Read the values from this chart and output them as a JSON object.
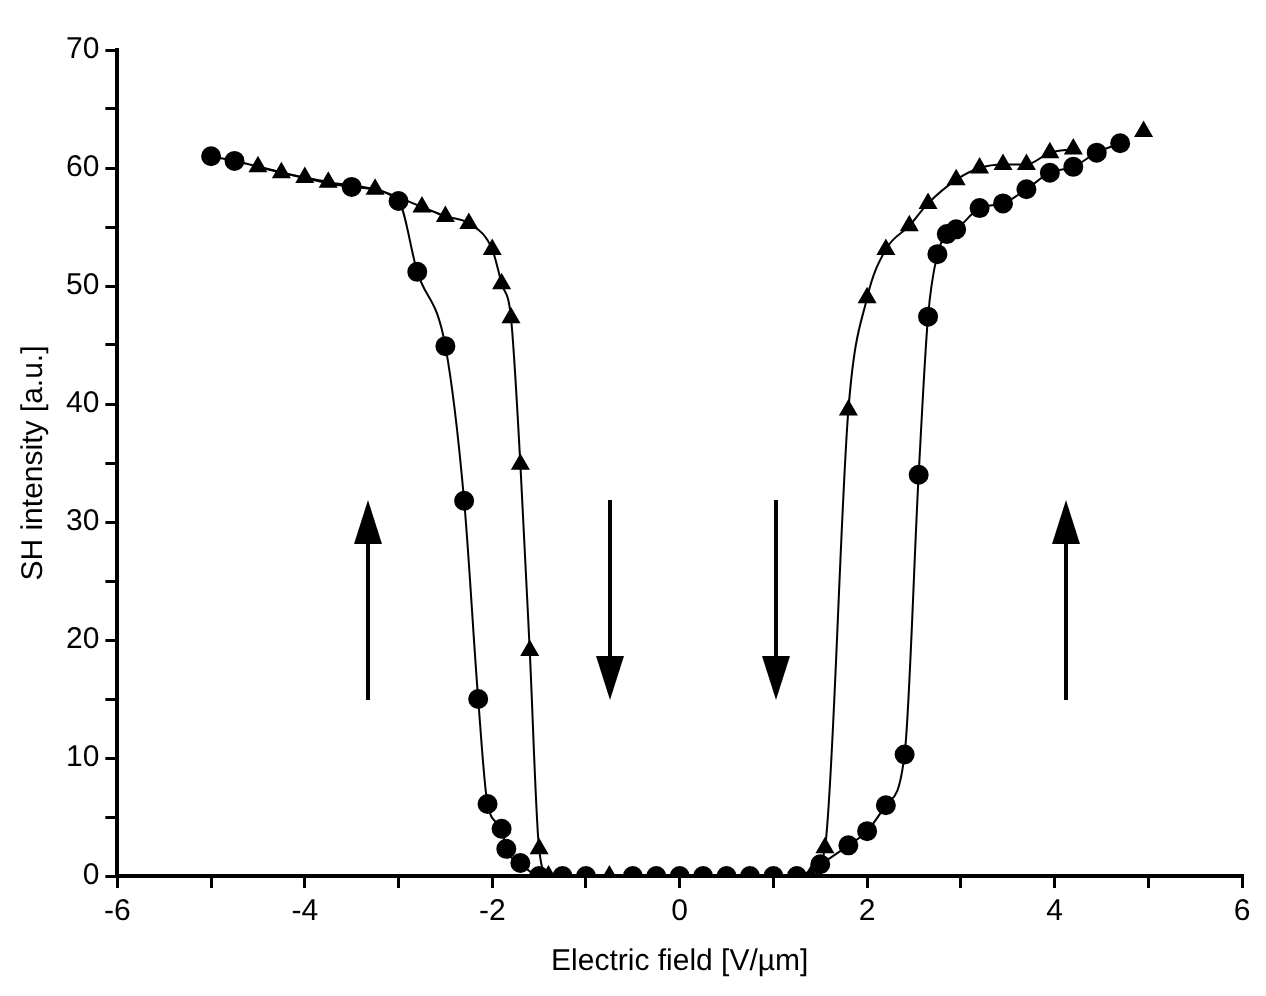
{
  "chart_data": {
    "type": "line",
    "xlabel": "Electric field [V/µm]",
    "ylabel": "SH intensity [a.u.]",
    "xlim": [
      -6,
      6
    ],
    "xticks": [
      -6,
      {
        "value": -5,
        "label": null
      },
      -4,
      {
        "value": -3,
        "label": null
      },
      -2,
      {
        "value": -1,
        "label": null
      },
      0,
      {
        "value": 1,
        "label": null
      },
      2,
      {
        "value": 3,
        "label": null
      },
      4,
      {
        "value": 5,
        "label": null
      },
      6
    ],
    "ylim": [
      0,
      70
    ],
    "yticks": [
      0,
      {
        "value": 5,
        "label": null
      },
      10,
      {
        "value": 15,
        "label": null
      },
      20,
      {
        "value": 25,
        "label": null
      },
      30,
      {
        "value": 35,
        "label": null
      },
      40,
      {
        "value": 45,
        "label": null
      },
      50,
      {
        "value": 55,
        "label": null
      },
      60,
      {
        "value": 65,
        "label": null
      },
      70
    ],
    "grid": false,
    "legend": false,
    "line_style": "solid",
    "series": [
      {
        "color": "#000000",
        "marker": "circle",
        "x": [
          -5,
          -4.75,
          -3.5,
          -3,
          -2.8,
          -2.5,
          -2.3,
          -2.15,
          -2.05,
          -1.9,
          -1.85,
          -1.7,
          -1.5,
          -1.25,
          -1,
          -0.5,
          -0.25,
          0,
          0.25,
          0.5,
          0.75,
          1,
          1.25,
          1.5,
          1.8,
          2,
          2.2,
          2.4,
          2.55,
          2.65,
          2.75,
          2.85,
          2.95,
          3.2,
          3.45,
          3.7,
          3.95,
          4.2,
          4.45,
          4.7
        ],
        "values": [
          61,
          60.6,
          58.4,
          57.2,
          51.2,
          44.9,
          31.8,
          15,
          6.1,
          4,
          2.3,
          1.1,
          0,
          0,
          0,
          0,
          0,
          0,
          0,
          0,
          0,
          0,
          0,
          1,
          2.6,
          3.8,
          6,
          10.3,
          34,
          47.4,
          52.7,
          54.4,
          54.8,
          56.6,
          57,
          58.2,
          59.6,
          60.1,
          61.3,
          62.1
        ]
      },
      {
        "color": "#000000",
        "marker": "triangle",
        "x": [
          -4.5,
          -4.25,
          -4,
          -3.75,
          -3.25,
          -2.75,
          -2.5,
          -2.25,
          -2,
          -1.9,
          -1.8,
          -1.7,
          -1.6,
          -1.5,
          -1.4,
          -0.75,
          1.4,
          1.55,
          1.8,
          2,
          2.2,
          2.45,
          2.65,
          2.95,
          3.2,
          3.45,
          3.7,
          3.95,
          4.2,
          4.45,
          4.7,
          4.95
        ],
        "values": [
          60.1,
          59.6,
          59.2,
          58.8,
          58.2,
          56.7,
          55.9,
          55.3,
          53.1,
          50.2,
          47.3,
          34.9,
          19.1,
          2.3,
          0,
          0,
          0,
          2.4,
          39.5,
          49,
          53.1,
          55.1,
          57,
          59,
          60,
          60.3,
          60.3,
          61.3,
          61.6,
          null,
          null,
          63.1
        ]
      }
    ]
  }
}
